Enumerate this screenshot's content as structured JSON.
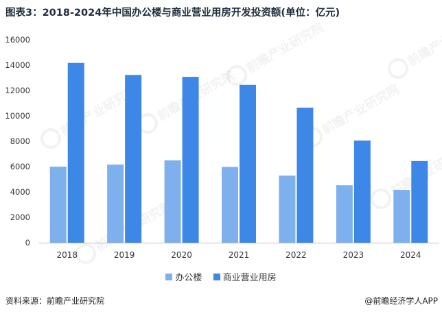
{
  "title": "图表3：2018-2024年中国办公楼与商业营业用房开发投资额(单位：亿元)",
  "chart_data": {
    "type": "bar",
    "categories": [
      "2018",
      "2019",
      "2020",
      "2021",
      "2022",
      "2023",
      "2024"
    ],
    "series": [
      {
        "name": "办公楼",
        "values": [
          5996,
          6163,
          6494,
          5974,
          5291,
          4531,
          4160
        ],
        "color": "#7fb0ee"
      },
      {
        "name": "商业营业用房",
        "values": [
          14177,
          13226,
          13076,
          12445,
          10647,
          8055,
          6440
        ],
        "color": "#3d87e6"
      }
    ],
    "ylim": [
      0,
      16000
    ],
    "yticks": [
      0,
      2000,
      4000,
      6000,
      8000,
      10000,
      12000,
      14000,
      16000
    ],
    "grid": false,
    "legend_position": "bottom"
  },
  "footer": {
    "source": "资料来源：前瞻产业研究院",
    "credit": "@前瞻经济学人APP"
  },
  "watermark": "前瞻产业研究院"
}
